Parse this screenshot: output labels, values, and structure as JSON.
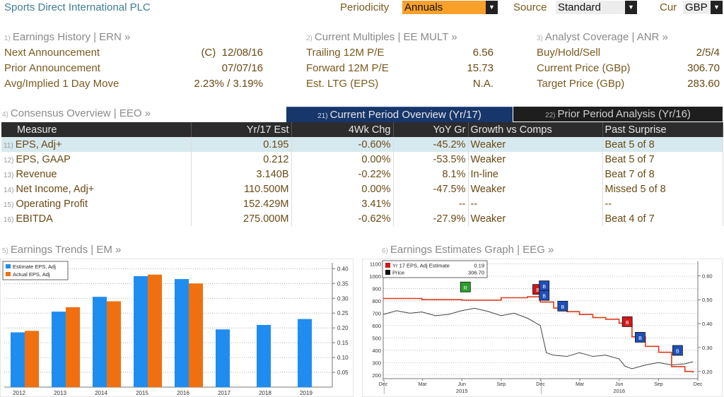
{
  "header": {
    "title": "Sports Direct International PLC",
    "periodicity_label": "Periodicity",
    "periodicity_value": "Annuals",
    "source_label": "Source",
    "source_value": "Standard",
    "currency_label": "Cur",
    "currency_value": "GBP"
  },
  "sections": {
    "ern": {
      "num": "1)",
      "title": "Earnings History | ERN »"
    },
    "mult": {
      "num": "2)",
      "title": "Current Multiples | EE MULT »"
    },
    "anr": {
      "num": "3)",
      "title": "Analyst Coverage | ANR »"
    },
    "eeo": {
      "num": "4)",
      "title": "Consensus Overview | EEO »"
    },
    "em": {
      "num": "5)",
      "title": "Earnings Trends | EM »"
    },
    "eeg": {
      "num": "6)",
      "title": "Earnings Estimates Graph | EEG »"
    }
  },
  "earnings_history": [
    {
      "label": "Next Announcement",
      "prefix": "(C)",
      "value": "12/08/16"
    },
    {
      "label": "Prior Announcement",
      "prefix": "",
      "value": "07/07/16"
    },
    {
      "label": "Avg/Implied 1 Day Move",
      "prefix": "",
      "value": "2.23% / 3.19%"
    }
  ],
  "multiples": [
    {
      "label": "Trailing 12M P/E",
      "value": "6.56"
    },
    {
      "label": "Forward 12M P/E",
      "value": "15.73"
    },
    {
      "label": "Est. LTG (EPS)",
      "value": "N.A."
    }
  ],
  "coverage": [
    {
      "label": "Buy/Hold/Sell",
      "value": "2/5/4"
    },
    {
      "label": "Current Price (GBp)",
      "value": "306.70"
    },
    {
      "label": "Target Price (GBp)",
      "value": "283.60"
    }
  ],
  "tabs": [
    {
      "num": "21)",
      "label": "Current Period Overview (Yr/17)"
    },
    {
      "num": "22)",
      "label": "Prior Period Analysis (Yr/16)"
    }
  ],
  "consensus": {
    "headers": [
      "Measure",
      "Yr/17 Est",
      "4Wk Chg",
      "YoY Gr",
      "Growth vs Comps",
      "Past Surprise"
    ],
    "rows": [
      {
        "num": "11)",
        "measure": "EPS, Adj+",
        "est": "0.195",
        "chg": "-0.60%",
        "chg_tone": "neg",
        "yoy": "-45.2%",
        "yoy_tone": "neg",
        "comps": "Weaker",
        "surprise": "Beat 5 of 8"
      },
      {
        "num": "12)",
        "measure": "EPS, GAAP",
        "est": "0.212",
        "chg": "0.00%",
        "chg_tone": "neu",
        "yoy": "-53.5%",
        "yoy_tone": "neg",
        "comps": "Weaker",
        "surprise": "Beat 5 of 7"
      },
      {
        "num": "13)",
        "measure": "Revenue",
        "est": "3.140B",
        "chg": "-0.22%",
        "chg_tone": "neg",
        "yoy": "8.1%",
        "yoy_tone": "pos",
        "comps": "In-line",
        "surprise": "Beat 7 of 8"
      },
      {
        "num": "14)",
        "measure": "Net Income, Adj+",
        "est": "110.500M",
        "chg": "0.00%",
        "chg_tone": "neu",
        "yoy": "-47.5%",
        "yoy_tone": "neg",
        "comps": "Weaker",
        "surprise": "Missed 5 of 8"
      },
      {
        "num": "15)",
        "measure": "Operating Profit",
        "est": "152.429M",
        "chg": "3.41%",
        "chg_tone": "pos",
        "yoy": "--",
        "yoy_tone": "neu",
        "comps": "--",
        "surprise": "--"
      },
      {
        "num": "16)",
        "measure": "EBITDA",
        "est": "275.000M",
        "chg": "-0.62%",
        "chg_tone": "neg",
        "yoy": "-27.9%",
        "yoy_tone": "neg",
        "comps": "Weaker",
        "surprise": "Beat 4 of 7"
      }
    ]
  },
  "colors": {
    "estimate": "#1f8df0",
    "actual": "#f07010",
    "accent_orange": "#f7a02a",
    "price_line": "#555555",
    "est_line": "#e03a1a"
  },
  "chart_data": [
    {
      "type": "bar",
      "title": "Earnings Trends",
      "categories": [
        "2012",
        "2013",
        "2014",
        "2015",
        "2016",
        "2017",
        "2018",
        "2019"
      ],
      "series": [
        {
          "name": "Estimate EPS, Adj",
          "values": [
            0.185,
            0.255,
            0.305,
            0.375,
            0.365,
            0.195,
            0.21,
            0.23
          ]
        },
        {
          "name": "Actual EPS, Adj",
          "values": [
            0.19,
            0.27,
            0.29,
            0.38,
            0.35,
            null,
            null,
            null
          ]
        }
      ],
      "yticks": [
        "0.05",
        "0.10",
        "0.15",
        "0.20",
        "0.25",
        "0.30",
        "0.35",
        "0.40"
      ],
      "ylim": [
        0,
        0.42
      ],
      "legend": "top-left",
      "grid": true
    },
    {
      "type": "line",
      "title": "Earnings Estimates Graph",
      "legend_entries": [
        {
          "name": "Yr 17 EPS, Adj Estimate",
          "value": "0.19"
        },
        {
          "name": "Price",
          "value": "306.70"
        }
      ],
      "left_ticks": [
        "200",
        "300",
        "400",
        "500",
        "600",
        "700",
        "800",
        "900",
        "1000",
        "1100"
      ],
      "right_ticks": [
        "0.20",
        "0.30",
        "0.40",
        "0.50",
        "0.60"
      ],
      "left_ylim": [
        170,
        1120
      ],
      "right_ylim": [
        0.17,
        0.66
      ],
      "x_months": [
        "Dec",
        "Mar",
        "Jun",
        "Sep",
        "Dec",
        "Mar",
        "Jun",
        "Sep",
        "Dec"
      ],
      "x_years": [
        "2015",
        "2016"
      ],
      "xlim": [
        "2014-12-01",
        "2016-12-01"
      ],
      "series": [
        {
          "name": "Price",
          "points": [
            [
              "2014-12-01",
              690
            ],
            [
              "2015-01-01",
              720
            ],
            [
              "2015-02-01",
              700
            ],
            [
              "2015-03-01",
              710
            ],
            [
              "2015-04-01",
              680
            ],
            [
              "2015-05-01",
              690
            ],
            [
              "2015-06-01",
              720
            ],
            [
              "2015-07-01",
              740
            ],
            [
              "2015-08-01",
              715
            ],
            [
              "2015-09-01",
              680
            ],
            [
              "2015-10-01",
              700
            ],
            [
              "2015-11-01",
              660
            ],
            [
              "2015-12-01",
              600
            ],
            [
              "2015-12-15",
              380
            ],
            [
              "2016-01-01",
              360
            ],
            [
              "2016-02-01",
              350
            ],
            [
              "2016-03-01",
              380
            ],
            [
              "2016-04-01",
              350
            ],
            [
              "2016-05-01",
              360
            ],
            [
              "2016-06-01",
              330
            ],
            [
              "2016-06-15",
              270
            ],
            [
              "2016-07-01",
              250
            ],
            [
              "2016-08-01",
              280
            ],
            [
              "2016-09-01",
              300
            ],
            [
              "2016-10-01",
              280
            ],
            [
              "2016-11-01",
              290
            ],
            [
              "2016-11-20",
              306.7
            ]
          ]
        },
        {
          "name": "Yr 17 EPS, Adj Estimate",
          "points": [
            [
              "2014-12-01",
              0.505
            ],
            [
              "2015-03-01",
              0.5
            ],
            [
              "2015-06-01",
              0.498
            ],
            [
              "2015-09-01",
              0.508
            ],
            [
              "2015-11-01",
              0.512
            ],
            [
              "2015-12-01",
              0.49
            ],
            [
              "2016-01-01",
              0.465
            ],
            [
              "2016-02-01",
              0.45
            ],
            [
              "2016-03-01",
              0.438
            ],
            [
              "2016-04-01",
              0.425
            ],
            [
              "2016-05-01",
              0.418
            ],
            [
              "2016-06-01",
              0.402
            ],
            [
              "2016-07-01",
              0.345
            ],
            [
              "2016-08-01",
              0.305
            ],
            [
              "2016-09-01",
              0.28
            ],
            [
              "2016-10-01",
              0.22
            ],
            [
              "2016-11-01",
              0.2
            ],
            [
              "2016-11-20",
              0.195
            ]
          ]
        }
      ],
      "event_markers": [
        {
          "label": "R",
          "date": "2015-06-10",
          "y": 0.55,
          "color": "#2aa02a"
        },
        {
          "label": "B",
          "date": "2015-11-25",
          "y": 0.54,
          "color": "#d01818"
        },
        {
          "label": "B",
          "date": "2015-12-10",
          "y": 0.555,
          "color": "#1e4fb8"
        },
        {
          "label": "B",
          "date": "2015-12-10",
          "y": 0.515,
          "color": "#1e4fb8"
        },
        {
          "label": "B",
          "date": "2016-01-22",
          "y": 0.47,
          "color": "#1e4fb8"
        },
        {
          "label": "B",
          "date": "2016-06-20",
          "y": 0.405,
          "color": "#d01818"
        },
        {
          "label": "B",
          "date": "2016-07-20",
          "y": 0.34,
          "color": "#1e4fb8"
        },
        {
          "label": "B",
          "date": "2016-10-15",
          "y": 0.285,
          "color": "#1e4fb8"
        }
      ]
    }
  ]
}
